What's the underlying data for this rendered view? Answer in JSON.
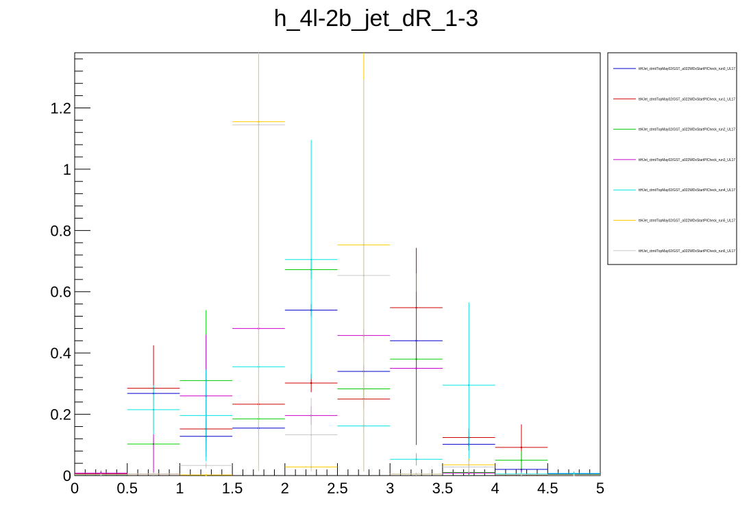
{
  "chart_data": {
    "type": "line",
    "title": "h_4l-2b_jet_dR_1-3",
    "xlabel": "",
    "ylabel": "",
    "xlim": [
      0,
      5
    ],
    "ylim": [
      0,
      1.38
    ],
    "x_ticks": [
      "0",
      "0.5",
      "1",
      "1.5",
      "2",
      "2.5",
      "3",
      "3.5",
      "4",
      "4.5",
      "5"
    ],
    "y_ticks": [
      "0",
      "0.2",
      "0.4",
      "0.6",
      "0.8",
      "1",
      "1.2"
    ],
    "legend_position": "top-right, outside plot",
    "bin_edges": [
      0,
      0.5,
      1,
      1.5,
      2,
      2.5,
      3,
      3.5,
      4,
      4.5,
      5
    ],
    "series": [
      {
        "name": "ttHJet_ctmt/TopMay02/GST_a022WDxStartPICheck_run0_UL17",
        "color": "#0000cc",
        "values": [
          0.005,
          0.268,
          0.128,
          0.155,
          0.54,
          0.34,
          0.44,
          0.102,
          0.02,
          0.005
        ],
        "errors": [
          0.005,
          0.02,
          0.02,
          0.02,
          0.02,
          0.02,
          0.02,
          0.02,
          0.01,
          0.005
        ]
      },
      {
        "name": "ttHJet_ctmt/TopMay02/GST_a022WDxStartPICheck_run1_UL17",
        "color": "#cc0000",
        "values": [
          0.005,
          0.285,
          0.152,
          0.233,
          0.302,
          0.25,
          0.548,
          0.124,
          0.092,
          0.003
        ],
        "errors": [
          0.005,
          0.14,
          0.03,
          0.03,
          0.03,
          0.03,
          0.195,
          0.03,
          0.075,
          0.003
        ]
      },
      {
        "name": "ttHJet_ctmt/TopMay02/GST_a022WDxStartPICheck_run2_UL17",
        "color": "#00cc00",
        "values": [
          0.003,
          0.103,
          0.31,
          0.185,
          0.672,
          0.283,
          0.38,
          0.01,
          0.05,
          0.003
        ],
        "errors": [
          0.003,
          0.02,
          0.23,
          0.03,
          0.03,
          0.03,
          0.28,
          0.01,
          0.03,
          0.003
        ]
      },
      {
        "name": "ttHJet_ctmt/TopMay02/GST_a022WDxStartPICheck_run3_UL17",
        "color": "#cc00cc",
        "values": [
          0.008,
          0.005,
          0.26,
          0.48,
          0.196,
          0.457,
          0.35,
          0.008,
          0.003,
          0.002
        ],
        "errors": [
          0.008,
          0.13,
          0.2,
          0.02,
          0.03,
          0.02,
          0.25,
          0.005,
          0.003,
          0.002
        ]
      },
      {
        "name": "ttHJet_ctmt/TopMay02/GST_a022WDxStartPICheck_run4_UL17",
        "color": "#00e5e5",
        "values": [
          0.003,
          0.215,
          0.196,
          0.355,
          0.705,
          0.162,
          0.053,
          0.295,
          0.005,
          0.007
        ],
        "errors": [
          0.003,
          0.08,
          0.15,
          0.02,
          0.39,
          0.02,
          0.02,
          0.27,
          0.005,
          0.007
        ]
      },
      {
        "name": "ttHJet_ctmt/TopMay02/GST_a022WDxStartPICheck_run5_UL17",
        "color": "#ffcc00",
        "values": [
          0.003,
          0.005,
          0.002,
          1.155,
          0.028,
          0.753,
          0.005,
          0.035,
          0.003,
          0.002
        ],
        "errors": [
          0.003,
          0.005,
          0.002,
          1.14,
          0.01,
          0.74,
          0.005,
          0.02,
          0.003,
          0.002
        ]
      },
      {
        "name": "ttHJet_ctmt/TopMay02/GST_a022WDxStartPICheck_run6_UL17",
        "color": "#c8c8c8",
        "values": [
          0.003,
          0.005,
          0.033,
          1.145,
          0.133,
          0.653,
          0.005,
          0.028,
          0.003,
          0.002
        ],
        "errors": [
          0.003,
          0.005,
          0.01,
          1.13,
          0.12,
          0.64,
          0.005,
          0.02,
          0.003,
          0.002
        ]
      }
    ]
  }
}
